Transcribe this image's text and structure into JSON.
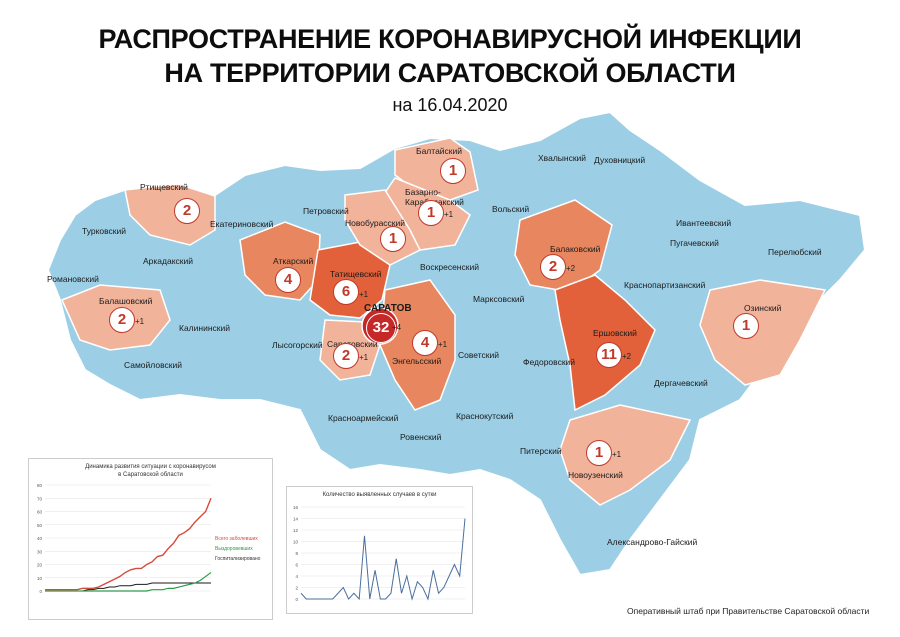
{
  "title_line1": "РАСПРОСТРАНЕНИЕ КОРОНАВИРУСНОЙ ИНФЕКЦИИ",
  "title_line2": "НА ТЕРРИТОРИИ САРАТОВСКОЙ ОБЛАСТИ",
  "date": "на 16.04.2020",
  "footer": "Оперативный штаб при Правительстве Саратовской области",
  "colors": {
    "none": "#9ccfe6",
    "low": "#f2b39b",
    "mid": "#e8875f",
    "high": "#e2613a",
    "city": "#c62828"
  },
  "districts": [
    {
      "name": "Балтайский",
      "count": "1",
      "delta": ""
    },
    {
      "name": "Хвалынский",
      "count": "",
      "delta": ""
    },
    {
      "name": "Духовницкий",
      "count": "",
      "delta": ""
    },
    {
      "name": "Базарно-\nКарабулакский",
      "count": "1",
      "delta": "+1"
    },
    {
      "name": "Ртищевский",
      "count": "2",
      "delta": ""
    },
    {
      "name": "Вольский",
      "count": "",
      "delta": ""
    },
    {
      "name": "Ивантеевский",
      "count": "",
      "delta": ""
    },
    {
      "name": "Турковский",
      "count": "",
      "delta": ""
    },
    {
      "name": "Екатериновский",
      "count": "",
      "delta": ""
    },
    {
      "name": "Петровский",
      "count": "",
      "delta": ""
    },
    {
      "name": "Новобурасский",
      "count": "1",
      "delta": ""
    },
    {
      "name": "Аркадакский",
      "count": "",
      "delta": ""
    },
    {
      "name": "Аткарский",
      "count": "4",
      "delta": ""
    },
    {
      "name": "Балаковский",
      "count": "2",
      "delta": "+2"
    },
    {
      "name": "Пугачевский",
      "count": "",
      "delta": ""
    },
    {
      "name": "Перелюбский",
      "count": "",
      "delta": ""
    },
    {
      "name": "Воскресенский",
      "count": "",
      "delta": ""
    },
    {
      "name": "Романовский",
      "count": "",
      "delta": ""
    },
    {
      "name": "Татищевский",
      "count": "6",
      "delta": "+1"
    },
    {
      "name": "Краснопартизанский",
      "count": "",
      "delta": ""
    },
    {
      "name": "Балашовский",
      "count": "2",
      "delta": "+1"
    },
    {
      "name": "Марксовский",
      "count": "",
      "delta": ""
    },
    {
      "name": "Озинский",
      "count": "1",
      "delta": ""
    },
    {
      "name": "Калининский",
      "count": "",
      "delta": ""
    },
    {
      "name": "Ершовский",
      "count": "11",
      "delta": "+2"
    },
    {
      "name": "Лысогорский",
      "count": "",
      "delta": ""
    },
    {
      "name": "Саратовский",
      "count": "2",
      "delta": "+1"
    },
    {
      "name": "Советский",
      "count": "",
      "delta": ""
    },
    {
      "name": "Самойловский",
      "count": "",
      "delta": ""
    },
    {
      "name": "Энгельсский",
      "count": "4",
      "delta": "+1"
    },
    {
      "name": "Федоровский",
      "count": "",
      "delta": ""
    },
    {
      "name": "Дергачевский",
      "count": "",
      "delta": ""
    },
    {
      "name": "Красноармейский",
      "count": "",
      "delta": ""
    },
    {
      "name": "Краснокутский",
      "count": "",
      "delta": ""
    },
    {
      "name": "Ровенский",
      "count": "",
      "delta": ""
    },
    {
      "name": "Питерский",
      "count": "",
      "delta": ""
    },
    {
      "name": "Новоузенский",
      "count": "1",
      "delta": "+1"
    },
    {
      "name": "Александрово-Гайский",
      "count": "",
      "delta": ""
    }
  ],
  "city": {
    "name": "САРАТОВ",
    "count": "32",
    "delta": "+4"
  },
  "chart1": {
    "title": "Динамика развития ситуации с коронавирусом\nв Саратовской области",
    "legend": [
      "Всего заболевших",
      "Выздоровевших",
      "Госпитализировано"
    ],
    "colors": [
      "#d84a3a",
      "#2e9c4a",
      "#1a1a1a"
    ],
    "y_ticks": [
      "0",
      "10",
      "20",
      "30",
      "40",
      "50",
      "60",
      "70",
      "80"
    ],
    "total": [
      1,
      1,
      1,
      1,
      1,
      1,
      1,
      2,
      2,
      2,
      3,
      5,
      7,
      9,
      11,
      14,
      16,
      17,
      17,
      20,
      22,
      26,
      27,
      32,
      36,
      42,
      44,
      47,
      52,
      56,
      60,
      70
    ],
    "recovered": [
      0,
      0,
      0,
      0,
      0,
      0,
      0,
      0,
      0,
      0,
      0,
      0,
      0,
      0,
      0,
      0,
      0,
      0,
      0,
      0,
      1,
      1,
      1,
      2,
      2,
      3,
      4,
      5,
      6,
      8,
      11,
      14
    ],
    "hospital": [
      0,
      0,
      0,
      0,
      0,
      0,
      0,
      0,
      1,
      1,
      2,
      2,
      3,
      3,
      4,
      4,
      4,
      5,
      5,
      5,
      6,
      6,
      6,
      6,
      6,
      6,
      6,
      6,
      6,
      6,
      6,
      6
    ]
  },
  "chart2": {
    "title": "Количество выявленных случаев в сутки",
    "color": "#4a6f9e",
    "y_ticks": [
      "0",
      "2",
      "4",
      "6",
      "8",
      "10",
      "12",
      "14",
      "16"
    ],
    "values": [
      1,
      0,
      0,
      0,
      0,
      0,
      0,
      1,
      2,
      0,
      1,
      0,
      11,
      0,
      5,
      0,
      0,
      1,
      7,
      1,
      4,
      0,
      3,
      2,
      0,
      5,
      1,
      2,
      4,
      6,
      4,
      14
    ]
  }
}
